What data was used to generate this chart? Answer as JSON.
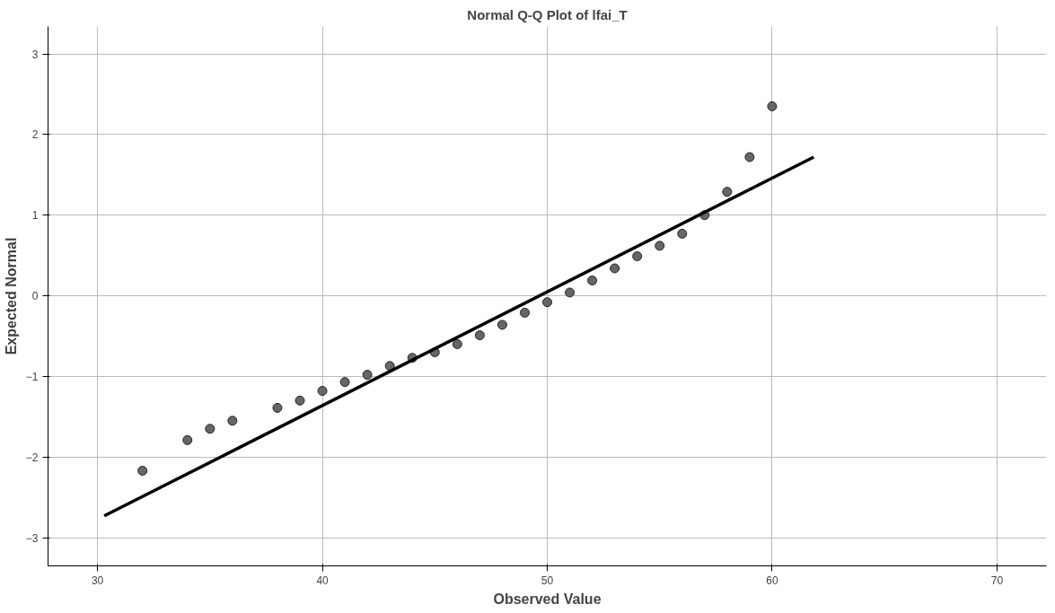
{
  "chart_data": {
    "type": "scatter",
    "title": "Normal Q-Q Plot of lfai_T",
    "xlabel": "Observed Value",
    "ylabel": "Expected Normal",
    "xlim": [
      27.8,
      72.2
    ],
    "ylim": [
      -3.35,
      3.34
    ],
    "xticks": [
      30,
      40,
      50,
      60,
      70
    ],
    "yticks": [
      -3,
      -2,
      -1,
      0,
      1,
      2,
      3
    ],
    "grid": true,
    "series": [
      {
        "marker": "circle",
        "color": "#666666",
        "x": [
          32,
          34,
          35,
          36,
          38,
          39,
          40,
          41,
          42,
          43,
          44,
          45,
          46,
          47,
          48,
          49,
          50,
          51,
          52,
          53,
          54,
          55,
          56,
          57,
          58,
          59,
          60
        ],
        "values": [
          -2.17,
          -1.79,
          -1.65,
          -1.55,
          -1.39,
          -1.3,
          -1.18,
          -1.07,
          -0.98,
          -0.87,
          -0.77,
          -0.7,
          -0.6,
          -0.49,
          -0.36,
          -0.21,
          -0.08,
          0.04,
          0.19,
          0.34,
          0.49,
          0.62,
          0.77,
          1.0,
          1.29,
          1.72,
          2.35
        ]
      },
      {
        "type": "line",
        "color": "#000000",
        "x": [
          30.3,
          61.85
        ],
        "values": [
          -2.73,
          1.72
        ]
      }
    ]
  }
}
